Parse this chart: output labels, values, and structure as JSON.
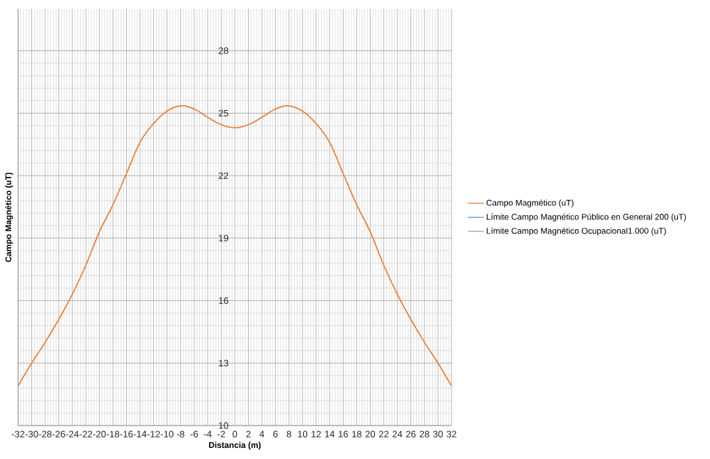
{
  "chart_data": {
    "type": "line",
    "xlabel": "Distancia (m)",
    "ylabel": "Campo Magnético  (uT)",
    "x": [
      -32,
      -30,
      -28,
      -26,
      -24,
      -22,
      -20,
      -18,
      -16,
      -14,
      -12,
      -10,
      -8,
      -6,
      -4,
      -2,
      0,
      2,
      4,
      6,
      8,
      10,
      12,
      14,
      16,
      18,
      20,
      22,
      24,
      26,
      28,
      30,
      32
    ],
    "series": [
      {
        "name": "Campo Magmético (uT)",
        "color": "#ed7d31",
        "values": [
          11.9,
          13.0,
          14.0,
          15.1,
          16.3,
          17.7,
          19.3,
          20.6,
          22.1,
          23.6,
          24.5,
          25.1,
          25.35,
          25.2,
          24.8,
          24.45,
          24.3,
          24.45,
          24.8,
          25.2,
          25.35,
          25.1,
          24.5,
          23.6,
          22.1,
          20.6,
          19.3,
          17.7,
          16.3,
          15.1,
          14.0,
          13.0,
          11.9
        ]
      },
      {
        "name": "Límite Campo Magnético Público en General 200 (uT)",
        "color": "#5b9bd5",
        "values": [
          null,
          null,
          null,
          null,
          null,
          null,
          null,
          null,
          null,
          null,
          null,
          null,
          null,
          null,
          null,
          null,
          null,
          null,
          null,
          null,
          null,
          null,
          null,
          null,
          null,
          null,
          null,
          null,
          null,
          null,
          null,
          null,
          null
        ]
      },
      {
        "name": "Límite Campo Magnético Ocupacional1.000  (uT)",
        "color": "#a5a5a5",
        "values": [
          null,
          null,
          null,
          null,
          null,
          null,
          null,
          null,
          null,
          null,
          null,
          null,
          null,
          null,
          null,
          null,
          null,
          null,
          null,
          null,
          null,
          null,
          null,
          null,
          null,
          null,
          null,
          null,
          null,
          null,
          null,
          null,
          null
        ]
      }
    ],
    "xlim": [
      -32,
      32
    ],
    "ylim": [
      10,
      30
    ],
    "xticks": [
      -32,
      -30,
      -28,
      -26,
      -24,
      -22,
      -20,
      -18,
      -16,
      -14,
      -12,
      -10,
      -8,
      -6,
      -4,
      -2,
      0,
      2,
      4,
      6,
      8,
      10,
      12,
      14,
      16,
      18,
      20,
      22,
      24,
      26,
      28,
      30,
      32
    ],
    "yticks": [
      10,
      13,
      16,
      19,
      22,
      25,
      28
    ],
    "grid": true,
    "legend": "right"
  }
}
